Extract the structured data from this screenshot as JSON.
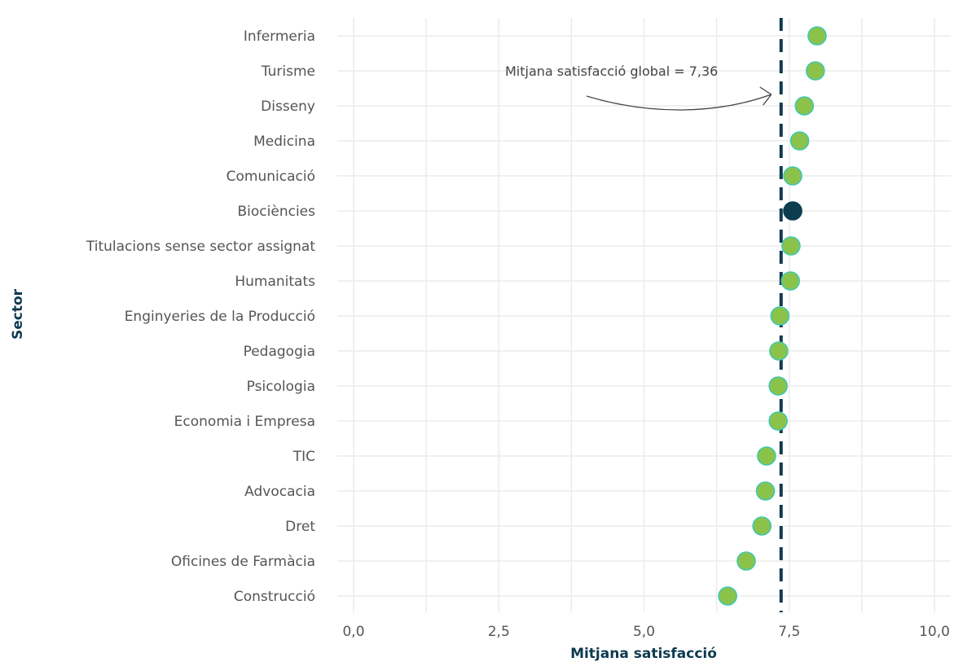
{
  "chart_data": {
    "type": "scatter",
    "orientation": "horizontal-dot",
    "xlabel": "Mitjana satisfacció",
    "ylabel": "Sector",
    "xlim": [
      0,
      10
    ],
    "xticks": [
      0,
      2.5,
      5,
      7.5,
      10
    ],
    "xtick_labels": [
      "0,0",
      "2,5",
      "5,0",
      "7,5",
      "10,0"
    ],
    "grid": true,
    "categories": [
      "Infermeria",
      "Turisme",
      "Disseny",
      "Medicina",
      "Comunicació",
      "Biociències",
      "Titulacions sense sector assignat",
      "Humanitats",
      "Enginyeries de la Producció",
      "Pedagogia",
      "Psicologia",
      "Economia i Empresa",
      "TIC",
      "Advocacia",
      "Dret",
      "Oficines de Farmàcia",
      "Construcció"
    ],
    "values": [
      7.98,
      7.95,
      7.76,
      7.68,
      7.56,
      7.56,
      7.53,
      7.52,
      7.34,
      7.32,
      7.31,
      7.31,
      7.11,
      7.09,
      7.03,
      6.76,
      6.44
    ],
    "highlight": "Biociències",
    "reference_line": {
      "value": 7.36,
      "label": "Mitjana satisfacció global = 7,36"
    },
    "colors": {
      "point": "#8bc34a",
      "point_stroke": "#3fc7b3",
      "highlight": "#0b3d4f",
      "reference_line": "#0e3a4f",
      "grid": "#ececec"
    }
  }
}
